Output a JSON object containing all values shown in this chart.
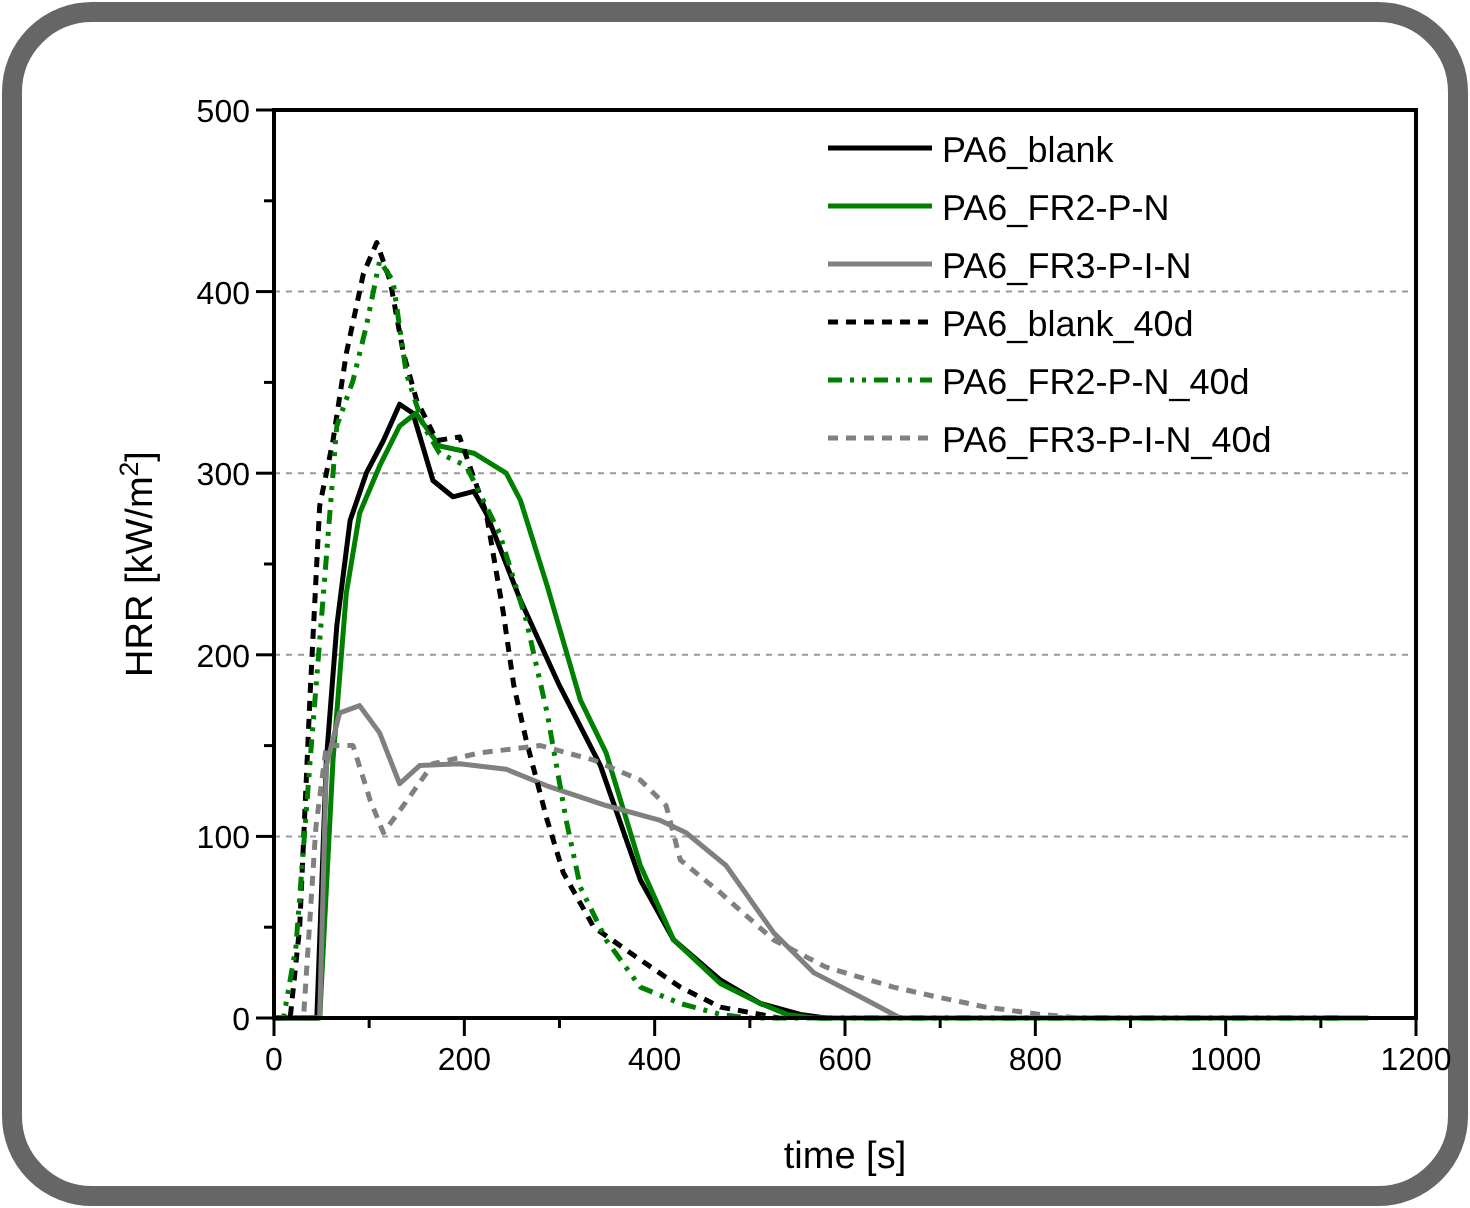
{
  "chart_data": {
    "type": "line",
    "xlabel": "time [s]",
    "ylabel": "HRR [kW/m$^{2}$]",
    "xlim": [
      0,
      1200
    ],
    "ylim": [
      0,
      500
    ],
    "xticks": [
      0,
      {
        "value": 100,
        "label": null
      },
      200,
      {
        "value": 300,
        "label": null
      },
      400,
      {
        "value": 500,
        "label": null
      },
      600,
      {
        "value": 700,
        "label": null
      },
      800,
      {
        "value": 900,
        "label": null
      },
      1000,
      {
        "value": 1100,
        "label": null
      },
      1200
    ],
    "yticks": [
      0,
      {
        "value": 50,
        "label": null
      },
      100,
      {
        "value": 150,
        "label": null
      },
      200,
      {
        "value": 250,
        "label": null
      },
      300,
      {
        "value": 350,
        "label": null
      },
      400,
      {
        "value": 450,
        "label": null
      },
      500
    ],
    "grid": "y",
    "legend": "top right",
    "series": [
      {
        "name": "PA6_blank",
        "color": "#000000",
        "line_style": "solid",
        "x": [
          0,
          45,
          55,
          66,
          80,
          97,
          115,
          132,
          146,
          167,
          188,
          210,
          223,
          259,
          300,
          343,
          385,
          420,
          469,
          511,
          553,
          580
        ],
        "values": [
          0,
          0,
          142,
          216,
          274,
          300,
          318,
          338,
          333,
          296,
          287,
          290,
          278,
          230,
          183,
          139,
          76,
          43,
          21,
          8,
          2,
          0
        ]
      },
      {
        "name": "PA6_FR2-P-N",
        "color": "#008000",
        "line_style": "solid",
        "x": [
          0,
          48,
          62,
          76,
          90,
          111,
          132,
          149,
          174,
          210,
          244,
          259,
          287,
          322,
          349,
          385,
          420,
          469,
          511,
          539,
          567,
          1150
        ],
        "values": [
          0,
          0,
          142,
          234,
          278,
          304,
          326,
          333,
          315,
          311,
          300,
          285,
          238,
          175,
          146,
          84,
          43,
          19,
          8,
          2,
          0,
          0
        ]
      },
      {
        "name": "PA6_FR3-P-I-N",
        "color": "#808080",
        "line_style": "solid",
        "x": [
          0,
          48,
          55,
          69,
          90,
          111,
          132,
          153,
          195,
          244,
          286,
          349,
          405,
          433,
          475,
          525,
          567,
          622,
          658
        ],
        "values": [
          0,
          0,
          139,
          168,
          172,
          157,
          129,
          139,
          140,
          137,
          128,
          117,
          109,
          102,
          84,
          47,
          25,
          10,
          0
        ]
      },
      {
        "name": "PA6_blank_40d",
        "color": "#000000",
        "line_style": "dashed",
        "x": [
          0,
          17,
          27,
          38,
          48,
          62,
          76,
          94,
          108,
          122,
          136,
          150,
          171,
          195,
          223,
          241,
          252,
          265,
          287,
          304,
          336,
          385,
          427,
          469,
          511,
          530
        ],
        "values": [
          0,
          0,
          50,
          179,
          282,
          318,
          366,
          410,
          427,
          406,
          366,
          340,
          318,
          320,
          278,
          223,
          183,
          153,
          109,
          80,
          50,
          32,
          17,
          6,
          2,
          0
        ]
      },
      {
        "name": "PA6_FR2-P-N_40d",
        "color": "#008000",
        "line_style": "dotted",
        "x": [
          0,
          10,
          23,
          38,
          52,
          66,
          83,
          97,
          111,
          125,
          139,
          157,
          174,
          202,
          237,
          265,
          287,
          307,
          322,
          349,
          385,
          427,
          469,
          500,
          1120
        ],
        "values": [
          0,
          0,
          39,
          142,
          234,
          326,
          351,
          381,
          417,
          406,
          355,
          326,
          311,
          304,
          267,
          219,
          168,
          109,
          72,
          43,
          17,
          8,
          2,
          0,
          0
        ]
      },
      {
        "name": "PA6_FR3-P-I-N_40d",
        "color": "#808080",
        "line_style": "dashed",
        "x": [
          0,
          31,
          44,
          55,
          83,
          101,
          115,
          136,
          167,
          216,
          280,
          336,
          385,
          412,
          427,
          469,
          525,
          580,
          651,
          693,
          748,
          805,
          847
        ],
        "values": [
          0,
          0,
          105,
          150,
          150,
          120,
          102,
          117,
          140,
          146,
          150,
          142,
          131,
          117,
          87,
          69,
          43,
          28,
          17,
          12,
          6,
          2,
          0
        ]
      }
    ]
  }
}
